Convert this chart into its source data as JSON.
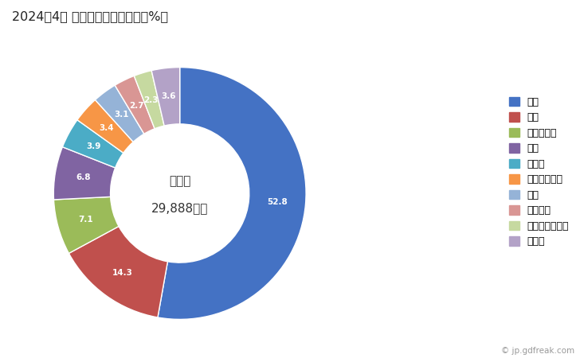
{
  "title": "2024年4月 輸出相手国のシェア（%）",
  "center_label_line1": "総　額",
  "center_label_line2": "29,888万円",
  "labels": [
    "台湾",
    "中国",
    "フィリピン",
    "米国",
    "トルコ",
    "シンガポール",
    "タイ",
    "イタリア",
    "バングラデシュ",
    "その他"
  ],
  "values": [
    52.8,
    14.3,
    7.1,
    6.8,
    3.9,
    3.4,
    3.1,
    2.7,
    2.3,
    3.6
  ],
  "colors": [
    "#4472C4",
    "#C0504D",
    "#9BBB59",
    "#8064A2",
    "#4BACC6",
    "#F79646",
    "#95B3D7",
    "#D99694",
    "#C6D9A0",
    "#B3A2C7"
  ],
  "background_color": "#FFFFFF",
  "watermark": "© jp.gdfreak.com"
}
